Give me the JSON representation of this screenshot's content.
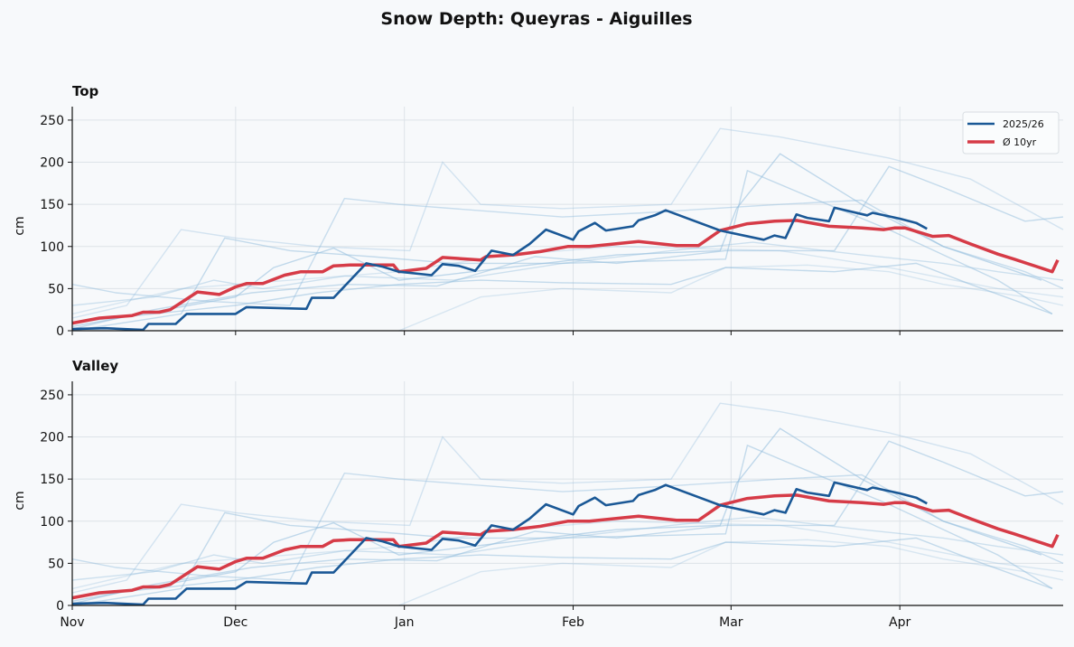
{
  "chart_data": {
    "type": "line",
    "title": "Snow Depth: Queyras - Aiguilles",
    "ylabel": "cm",
    "xlabel": "",
    "ylim": [
      0,
      266
    ],
    "xlim_days": [
      0,
      182
    ],
    "yticks": [
      0,
      50,
      100,
      150,
      200,
      250
    ],
    "xticks": [
      {
        "label": "Nov",
        "day": 0
      },
      {
        "label": "Dec",
        "day": 30
      },
      {
        "label": "Jan",
        "day": 61
      },
      {
        "label": "Feb",
        "day": 92
      },
      {
        "label": "Mar",
        "day": 121
      },
      {
        "label": "Apr",
        "day": 152
      }
    ],
    "grid": true,
    "legend": {
      "placement": "top-right",
      "panel": "Top"
    },
    "panels": [
      {
        "title": "Top"
      },
      {
        "title": "Valley"
      }
    ],
    "series": [
      {
        "name": "2025/26",
        "color": "#1a5896",
        "role": "current",
        "points": [
          [
            0,
            2
          ],
          [
            6,
            3
          ],
          [
            13,
            1
          ],
          [
            14,
            8
          ],
          [
            19,
            8
          ],
          [
            21,
            20
          ],
          [
            30,
            20
          ],
          [
            32,
            28
          ],
          [
            43,
            26
          ],
          [
            44,
            39
          ],
          [
            48,
            39
          ],
          [
            54,
            80
          ],
          [
            57,
            76
          ],
          [
            60,
            70
          ],
          [
            66,
            66
          ],
          [
            68,
            79
          ],
          [
            71,
            77
          ],
          [
            74,
            71
          ],
          [
            77,
            95
          ],
          [
            81,
            90
          ],
          [
            84,
            103
          ],
          [
            87,
            120
          ],
          [
            92,
            108
          ],
          [
            93,
            118
          ],
          [
            96,
            128
          ],
          [
            98,
            119
          ],
          [
            103,
            124
          ],
          [
            104,
            131
          ],
          [
            107,
            137
          ],
          [
            109,
            143
          ],
          [
            119,
            119
          ],
          [
            127,
            108
          ],
          [
            129,
            113
          ],
          [
            131,
            110
          ],
          [
            133,
            138
          ],
          [
            135,
            134
          ],
          [
            139,
            130
          ],
          [
            140,
            146
          ],
          [
            146,
            137
          ],
          [
            147,
            140
          ],
          [
            152,
            133
          ],
          [
            155,
            128
          ],
          [
            157,
            121
          ]
        ]
      },
      {
        "name": "Ø 10yr",
        "color": "#d63b47",
        "role": "average",
        "points": [
          [
            0,
            9
          ],
          [
            5,
            15
          ],
          [
            11,
            18
          ],
          [
            13,
            22
          ],
          [
            16,
            22
          ],
          [
            18,
            25
          ],
          [
            23,
            46
          ],
          [
            27,
            43
          ],
          [
            30,
            52
          ],
          [
            32,
            56
          ],
          [
            35,
            56
          ],
          [
            39,
            66
          ],
          [
            42,
            70
          ],
          [
            46,
            70
          ],
          [
            48,
            77
          ],
          [
            51,
            78
          ],
          [
            59,
            78
          ],
          [
            60,
            70
          ],
          [
            65,
            74
          ],
          [
            68,
            87
          ],
          [
            75,
            84
          ],
          [
            76,
            88
          ],
          [
            81,
            90
          ],
          [
            86,
            94
          ],
          [
            91,
            100
          ],
          [
            95,
            100
          ],
          [
            104,
            106
          ],
          [
            111,
            101
          ],
          [
            115,
            101
          ],
          [
            119,
            119
          ],
          [
            124,
            127
          ],
          [
            129,
            130
          ],
          [
            133,
            131
          ],
          [
            139,
            124
          ],
          [
            145,
            122
          ],
          [
            149,
            120
          ],
          [
            151,
            122
          ],
          [
            153,
            122
          ],
          [
            158,
            112
          ],
          [
            161,
            113
          ],
          [
            165,
            103
          ],
          [
            170,
            91
          ],
          [
            173,
            85
          ],
          [
            180,
            70
          ],
          [
            181,
            84
          ]
        ]
      }
    ],
    "history": [
      {
        "opacity": 0.35,
        "points": [
          [
            0,
            15
          ],
          [
            10,
            30
          ],
          [
            20,
            120
          ],
          [
            30,
            110
          ],
          [
            45,
            100
          ],
          [
            62,
            95
          ],
          [
            68,
            200
          ],
          [
            75,
            150
          ],
          [
            90,
            145
          ],
          [
            110,
            150
          ],
          [
            119,
            240
          ],
          [
            130,
            230
          ],
          [
            150,
            205
          ],
          [
            165,
            180
          ],
          [
            182,
            120
          ]
        ]
      },
      {
        "opacity": 0.45,
        "points": [
          [
            0,
            55
          ],
          [
            8,
            45
          ],
          [
            25,
            35
          ],
          [
            40,
            30
          ],
          [
            50,
            157
          ],
          [
            60,
            150
          ],
          [
            90,
            135
          ],
          [
            105,
            140
          ],
          [
            130,
            150
          ],
          [
            145,
            155
          ],
          [
            160,
            100
          ],
          [
            175,
            70
          ],
          [
            182,
            50
          ]
        ]
      },
      {
        "opacity": 0.5,
        "points": [
          [
            0,
            0
          ],
          [
            20,
            20
          ],
          [
            28,
            110
          ],
          [
            40,
            95
          ],
          [
            55,
            88
          ],
          [
            70,
            80
          ],
          [
            90,
            80
          ],
          [
            120,
            85
          ],
          [
            124,
            190
          ],
          [
            135,
            160
          ],
          [
            150,
            120
          ],
          [
            170,
            60
          ],
          [
            180,
            20
          ]
        ]
      },
      {
        "opacity": 0.55,
        "points": [
          [
            0,
            5
          ],
          [
            30,
            40
          ],
          [
            37,
            75
          ],
          [
            48,
            98
          ],
          [
            60,
            60
          ],
          [
            80,
            75
          ],
          [
            100,
            90
          ],
          [
            119,
            95
          ],
          [
            122,
            145
          ],
          [
            130,
            210
          ],
          [
            145,
            150
          ],
          [
            160,
            100
          ],
          [
            178,
            60
          ]
        ]
      },
      {
        "opacity": 0.5,
        "points": [
          [
            0,
            2
          ],
          [
            15,
            25
          ],
          [
            33,
            45
          ],
          [
            50,
            55
          ],
          [
            67,
            53
          ],
          [
            85,
            88
          ],
          [
            100,
            80
          ],
          [
            120,
            95
          ],
          [
            140,
            95
          ],
          [
            150,
            195
          ],
          [
            160,
            170
          ],
          [
            175,
            130
          ],
          [
            182,
            135
          ]
        ]
      },
      {
        "opacity": 0.5,
        "points": [
          [
            0,
            10
          ],
          [
            30,
            30
          ],
          [
            45,
            45
          ],
          [
            60,
            55
          ],
          [
            75,
            60
          ],
          [
            90,
            57
          ],
          [
            110,
            55
          ],
          [
            120,
            75
          ],
          [
            140,
            70
          ],
          [
            155,
            80
          ],
          [
            165,
            55
          ],
          [
            180,
            20
          ]
        ]
      },
      {
        "opacity": 0.3,
        "points": [
          [
            60,
            0
          ],
          [
            75,
            40
          ],
          [
            90,
            50
          ],
          [
            110,
            45
          ],
          [
            120,
            75
          ],
          [
            135,
            78
          ],
          [
            150,
            70
          ],
          [
            160,
            55
          ],
          [
            175,
            40
          ],
          [
            182,
            30
          ]
        ]
      },
      {
        "opacity": 0.4,
        "points": [
          [
            0,
            30
          ],
          [
            15,
            40
          ],
          [
            26,
            60
          ],
          [
            35,
            50
          ],
          [
            50,
            65
          ],
          [
            70,
            60
          ],
          [
            90,
            80
          ],
          [
            110,
            95
          ],
          [
            125,
            105
          ],
          [
            145,
            90
          ],
          [
            160,
            80
          ],
          [
            170,
            70
          ],
          [
            182,
            60
          ]
        ]
      },
      {
        "opacity": 0.3,
        "points": [
          [
            0,
            20
          ],
          [
            20,
            50
          ],
          [
            40,
            60
          ],
          [
            60,
            70
          ],
          [
            80,
            90
          ],
          [
            100,
            100
          ],
          [
            130,
            95
          ],
          [
            150,
            75
          ],
          [
            170,
            50
          ],
          [
            182,
            40
          ]
        ]
      }
    ]
  }
}
